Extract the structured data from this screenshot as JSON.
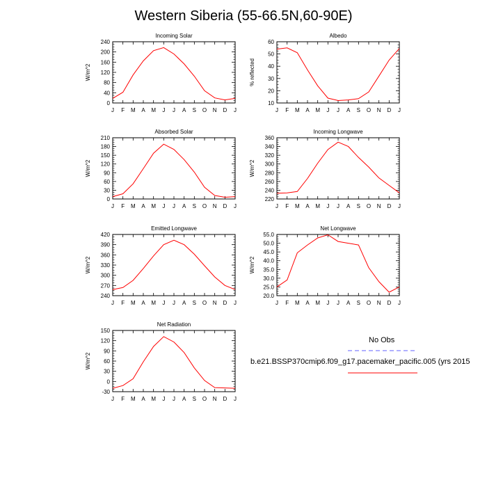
{
  "page": {
    "title": "Western Siberia (55-66.5N,60-90E)"
  },
  "months": [
    "J",
    "F",
    "M",
    "A",
    "M",
    "J",
    "J",
    "A",
    "S",
    "O",
    "N",
    "D",
    "J"
  ],
  "colors": {
    "model": "#ff0000",
    "obs": "#8080ff",
    "axis": "#000000"
  },
  "legend": {
    "obs_label": "No Obs",
    "model_label": "b.e21.BSSP370cmip6.f09_g17.pacemaker_pacific.005 (yrs 2015"
  },
  "chart_data": [
    {
      "type": "line",
      "title": "Incoming Solar",
      "ylabel": "W/m^2",
      "ylim": [
        0,
        240
      ],
      "yticks": [
        0,
        40,
        80,
        120,
        160,
        200,
        240
      ],
      "ytick_labels": [
        "0",
        "40",
        "80",
        "120",
        "160",
        "200",
        "240"
      ],
      "series": [
        {
          "values": [
            18,
            42,
            110,
            165,
            205,
            217,
            192,
            153,
            105,
            48,
            20,
            12,
            18
          ]
        }
      ]
    },
    {
      "type": "line",
      "title": "Albedo",
      "ylabel": "% reflected",
      "ylim": [
        10,
        60
      ],
      "yticks": [
        10,
        20,
        30,
        40,
        50,
        60
      ],
      "ytick_labels": [
        "10",
        "20",
        "30",
        "40",
        "50",
        "60"
      ],
      "series": [
        {
          "values": [
            54,
            55,
            51,
            37,
            24,
            14,
            12,
            12.5,
            13.5,
            19,
            32,
            45,
            54.5
          ]
        }
      ]
    },
    {
      "type": "line",
      "title": "Absorbed Solar",
      "ylabel": "W/m^2",
      "ylim": [
        0,
        210
      ],
      "yticks": [
        0,
        30,
        60,
        90,
        120,
        150,
        180,
        210
      ],
      "ytick_labels": [
        "0",
        "30",
        "60",
        "90",
        "120",
        "150",
        "180",
        "210"
      ],
      "series": [
        {
          "values": [
            8,
            18,
            52,
            104,
            157,
            188,
            170,
            135,
            92,
            40,
            12,
            6,
            8
          ]
        }
      ]
    },
    {
      "type": "line",
      "title": "Incoming Longwave",
      "ylabel": "W/m^2",
      "ylim": [
        220,
        360
      ],
      "yticks": [
        220,
        240,
        260,
        280,
        300,
        320,
        340,
        360
      ],
      "ytick_labels": [
        "220",
        "240",
        "260",
        "280",
        "300",
        "320",
        "340",
        "360"
      ],
      "series": [
        {
          "values": [
            233,
            234,
            237,
            267,
            302,
            333,
            350,
            340,
            315,
            293,
            268,
            251,
            234
          ]
        }
      ]
    },
    {
      "type": "line",
      "title": "Emitted Longwave",
      "ylabel": "W/m^2",
      "ylim": [
        240,
        420
      ],
      "yticks": [
        240,
        270,
        300,
        330,
        360,
        390,
        420
      ],
      "ytick_labels": [
        "240",
        "270",
        "300",
        "330",
        "360",
        "390",
        "420"
      ],
      "series": [
        {
          "values": [
            258,
            264,
            285,
            320,
            357,
            390,
            403,
            390,
            362,
            328,
            295,
            270,
            258
          ]
        }
      ]
    },
    {
      "type": "line",
      "title": "Net Longwave",
      "ylabel": "W/m^2",
      "ylim": [
        20,
        55
      ],
      "yticks": [
        20,
        25,
        30,
        35,
        40,
        45,
        50,
        55
      ],
      "ytick_labels": [
        "20.0",
        "25.0",
        "30.0",
        "35.0",
        "40.0",
        "45.0",
        "50.0",
        "55.0"
      ],
      "series": [
        {
          "values": [
            25,
            29,
            44.5,
            49,
            53,
            54.8,
            51,
            50,
            49,
            36,
            28,
            22,
            25
          ]
        }
      ]
    },
    {
      "type": "line",
      "title": "Net Radiation",
      "ylabel": "W/m^2",
      "ylim": [
        -30,
        150
      ],
      "yticks": [
        -30,
        0,
        30,
        60,
        90,
        120,
        150
      ],
      "ytick_labels": [
        "-30",
        "0",
        "30",
        "60",
        "90",
        "120",
        "150"
      ],
      "series": [
        {
          "values": [
            -20,
            -12,
            8,
            58,
            103,
            132,
            116,
            85,
            40,
            3,
            -18,
            -19,
            -20
          ]
        }
      ]
    }
  ]
}
